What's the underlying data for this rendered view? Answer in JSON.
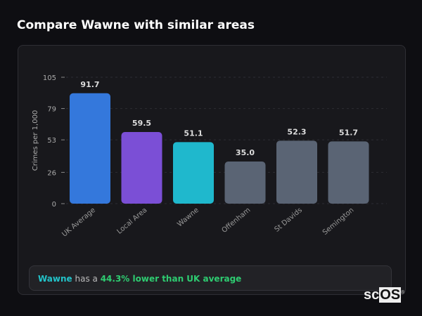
{
  "header": {
    "title": "Compare Wawne with similar areas"
  },
  "chart_data": {
    "type": "bar",
    "categories": [
      "UK Average",
      "Local Area",
      "Wawne",
      "Offenham",
      "St Davids",
      "Semington"
    ],
    "values": [
      91.7,
      59.5,
      51.1,
      35.0,
      52.3,
      51.7
    ],
    "value_labels": [
      "91.7",
      "59.5",
      "51.1",
      "35.0",
      "52.3",
      "51.7"
    ],
    "colors": [
      "#3478dc",
      "#7b4fd6",
      "#1fb8cd",
      "#5a6474",
      "#5a6474",
      "#5a6474"
    ],
    "ylabel": "Crimes per 1,000",
    "xlabel": "",
    "ylim": [
      0,
      105
    ],
    "yticks": [
      0,
      26,
      53,
      79,
      105
    ],
    "grid": true
  },
  "summary": {
    "place": "Wawne",
    "middle": " has a ",
    "comparison": "44.3% lower than UK average"
  },
  "logo": {
    "text_a": "sc",
    "text_b": "OS",
    "mark": "®"
  }
}
